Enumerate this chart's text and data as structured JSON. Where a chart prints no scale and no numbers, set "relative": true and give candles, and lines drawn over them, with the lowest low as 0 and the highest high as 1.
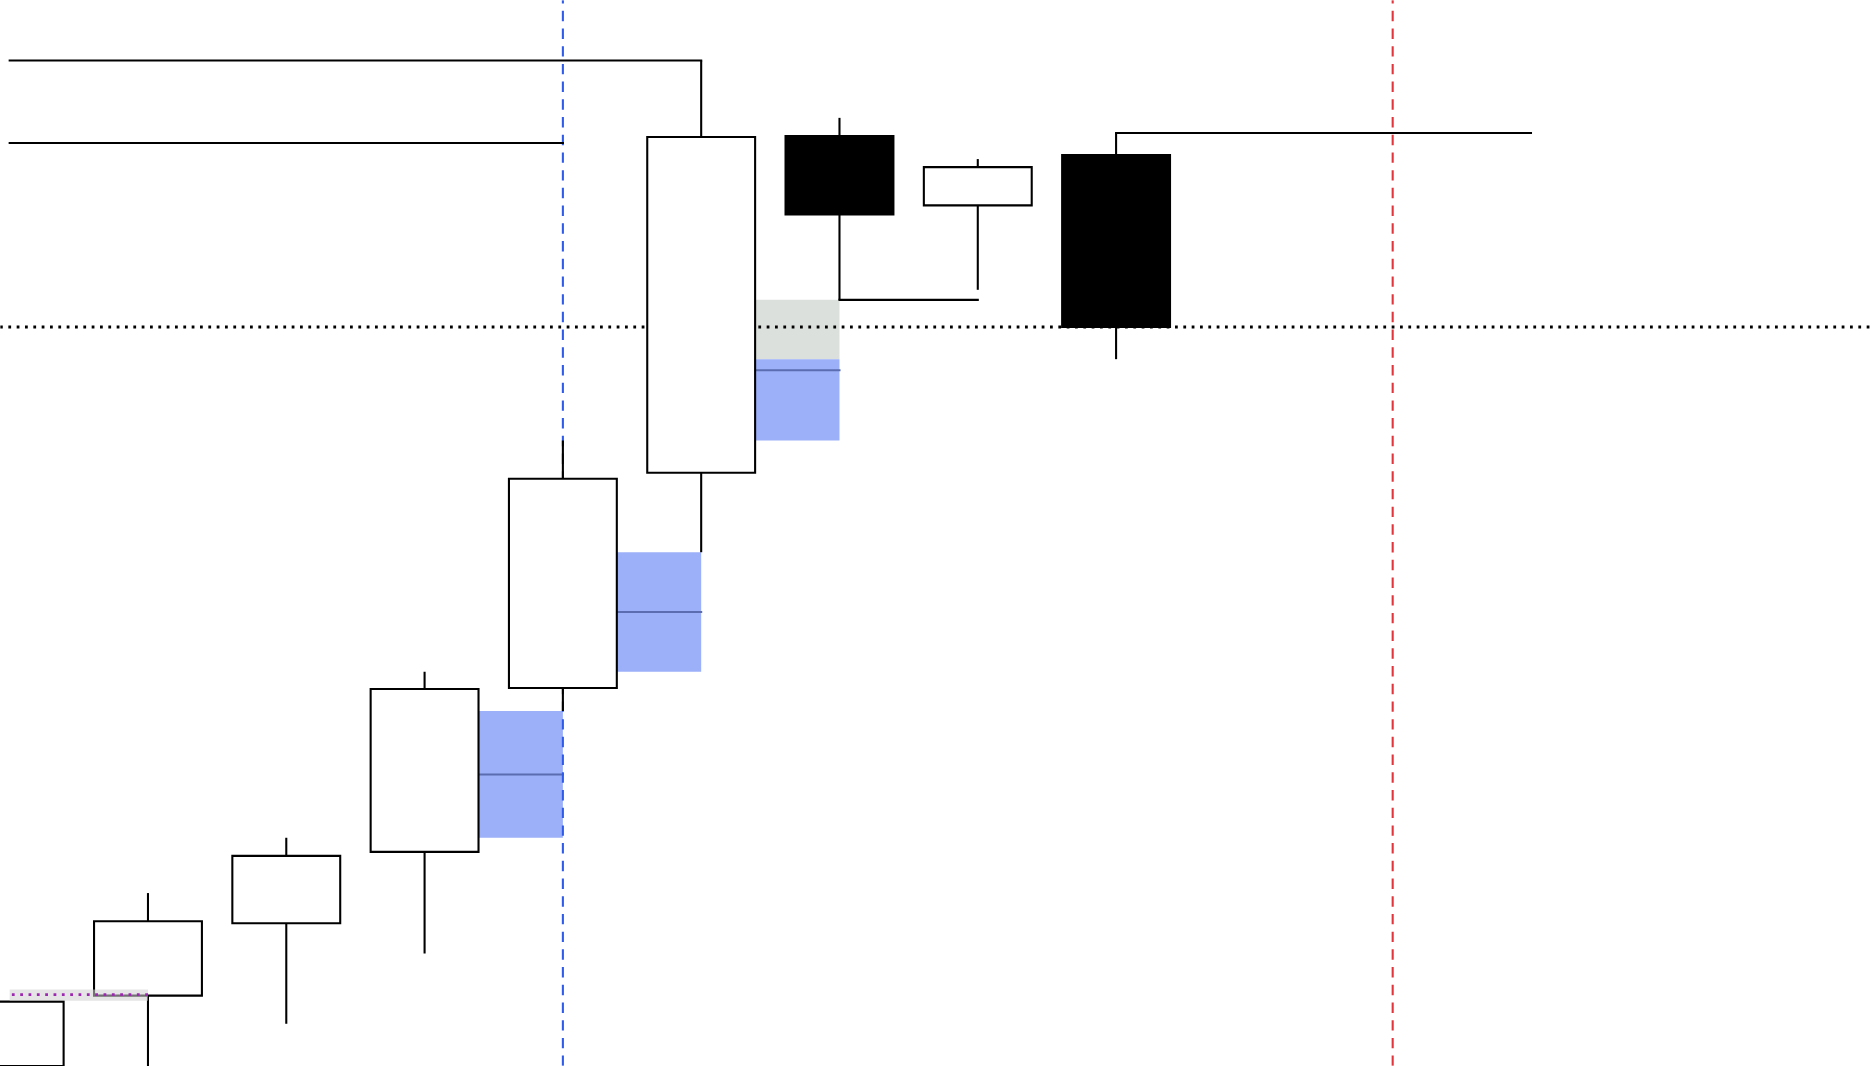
{
  "chart_data": {
    "type": "candlestick",
    "relative": true,
    "tick_labels": false,
    "categories": [
      null,
      null,
      null,
      null,
      null,
      null,
      null,
      null,
      null,
      null,
      null,
      null,
      null,
      null
    ],
    "ohlc": [
      [
        0,
        0.064,
        0,
        0.064
      ],
      [
        0.07,
        0.172,
        0,
        0.144
      ],
      [
        0.142,
        0.227,
        0.042,
        0.209
      ],
      [
        0.213,
        0.392,
        0.112,
        0.375
      ],
      [
        0.376,
        0.622,
        0.353,
        0.584
      ],
      [
        0.59,
        1.0,
        0.511,
        0.924
      ],
      [
        0.925,
        0.943,
        0.762,
        0.847
      ],
      [
        0.856,
        0.902,
        0.772,
        0.894
      ],
      [
        0.906,
        0.928,
        0.703,
        0.735
      ],
      null,
      null,
      null,
      null,
      null
    ],
    "series": [
      {
        "type": "line",
        "color": "#000000",
        "values": [
          1.0,
          1.0,
          1.0,
          1.0,
          1.0,
          1.0,
          null,
          null,
          null,
          null,
          null,
          null,
          null,
          null
        ]
      },
      {
        "type": "line",
        "color": "#000000",
        "values": [
          0.918,
          0.918,
          0.918,
          0.918,
          0.918,
          null,
          null,
          null,
          null,
          null,
          null,
          null,
          null,
          null
        ]
      },
      {
        "type": "line",
        "color": "#000000",
        "values": [
          null,
          null,
          null,
          null,
          null,
          null,
          0.762,
          0.762,
          null,
          null,
          null,
          null,
          null,
          null
        ]
      },
      {
        "type": "line",
        "color": "#000000",
        "values": [
          null,
          null,
          null,
          null,
          null,
          null,
          null,
          null,
          0.928,
          0.928,
          0.928,
          0.928,
          null,
          null
        ]
      },
      {
        "type": "line",
        "color": "#9c27b0",
        "line_style": "dotted",
        "values": [
          0.071,
          0.071,
          null,
          null,
          null,
          null,
          null,
          null,
          null,
          null,
          null,
          null,
          null,
          null
        ],
        "lower": [
          0.065,
          0.065,
          null,
          null,
          null,
          null,
          null,
          null,
          null,
          null,
          null,
          null,
          null,
          null
        ],
        "upper": [
          0.076,
          0.076,
          null,
          null,
          null,
          null,
          null,
          null,
          null,
          null,
          null,
          null,
          null,
          null
        ]
      }
    ],
    "ref_lines": [
      {
        "axis": "y",
        "value": 0.735,
        "color": "#000000",
        "line_style": "dotted"
      }
    ]
  }
}
